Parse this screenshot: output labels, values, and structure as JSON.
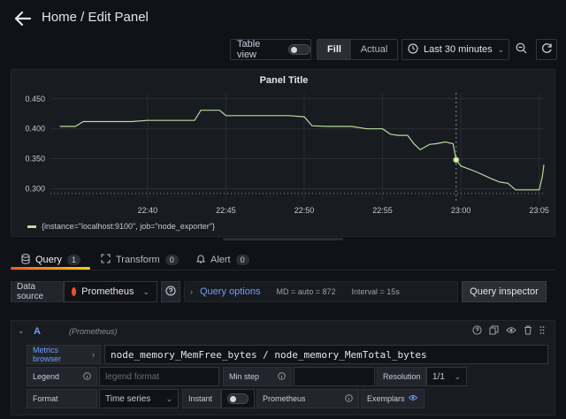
{
  "header": {
    "title": "Home / Edit Panel"
  },
  "toolbar": {
    "table_view_label": "Table view",
    "fill_label": "Fill",
    "actual_label": "Actual",
    "time_range_label": "Last 30 minutes"
  },
  "panel": {
    "title": "Panel Title",
    "legend_label": "{instance=\"localhost:9100\", job=\"node_exporter\"}",
    "series_color": "#b7dba1"
  },
  "chart_data": {
    "type": "line",
    "title": "Panel Title",
    "x_ticks": [
      "22:40",
      "22:45",
      "22:50",
      "22:55",
      "23:00",
      "23:05"
    ],
    "y_ticks": [
      "0.300",
      "0.350",
      "0.400",
      "0.450"
    ],
    "ylim": [
      0.28,
      0.46
    ],
    "xlim_minutes": [
      -6.2,
      25.3
    ],
    "threshold": 0.292,
    "series": [
      {
        "name": "{instance=\"localhost:9100\", job=\"node_exporter\"}",
        "x_minutes": [
          -5.6,
          -4.6,
          -4.1,
          -3.2,
          -2.0,
          -1.0,
          0.0,
          1.0,
          2.0,
          3.0,
          3.4,
          4.0,
          4.6,
          5.0,
          6.0,
          7.0,
          8.0,
          9.0,
          10.0,
          10.5,
          11.5,
          12.0,
          13.0,
          14.0,
          15.0,
          15.5,
          16.0,
          16.6,
          17.0,
          17.4,
          18.0,
          18.4,
          19.0,
          19.5,
          19.7,
          20.0,
          21.0,
          22.0,
          22.5,
          23.0,
          23.5,
          24.0,
          24.5,
          25.0,
          25.2,
          25.3
        ],
        "values": [
          0.404,
          0.404,
          0.412,
          0.412,
          0.412,
          0.412,
          0.414,
          0.414,
          0.414,
          0.414,
          0.431,
          0.431,
          0.431,
          0.422,
          0.422,
          0.422,
          0.422,
          0.422,
          0.42,
          0.405,
          0.404,
          0.404,
          0.404,
          0.4,
          0.4,
          0.391,
          0.389,
          0.389,
          0.375,
          0.365,
          0.374,
          0.375,
          0.378,
          0.375,
          0.348,
          0.338,
          0.328,
          0.316,
          0.311,
          0.309,
          0.298,
          0.298,
          0.298,
          0.298,
          0.32,
          0.34
        ]
      }
    ]
  },
  "tabs": [
    {
      "label": "Query",
      "count": "1"
    },
    {
      "label": "Transform",
      "count": "0"
    },
    {
      "label": "Alert",
      "count": "0"
    }
  ],
  "query_bar": {
    "datasource_label": "Data source",
    "datasource_value": "Prometheus",
    "query_options_label": "Query options",
    "md_text": "MD = auto = 872",
    "interval_text": "Interval = 15s",
    "inspector_label": "Query inspector"
  },
  "query": {
    "ref_id": "A",
    "datasource": "(Prometheus)",
    "metrics_browser_label": "Metrics browser",
    "expression": "node_memory_MemFree_bytes / node_memory_MemTotal_bytes",
    "legend_label": "Legend",
    "legend_placeholder": "legend format",
    "min_step_label": "Min step",
    "resolution_label": "Resolution",
    "resolution_value": "1/1",
    "format_label": "Format",
    "format_value": "Time series",
    "instant_label": "Instant",
    "prometheus_label": "Prometheus",
    "exemplars_label": "Exemplars"
  }
}
